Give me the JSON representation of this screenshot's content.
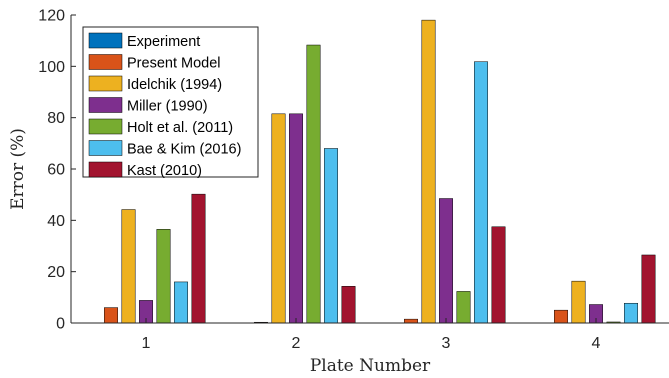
{
  "chart_data": {
    "type": "bar",
    "categories": [
      "1",
      "2",
      "3",
      "4"
    ],
    "xlabel": "Plate Number",
    "ylabel": "Error (%)",
    "ylim": [
      0,
      120
    ],
    "yticks": [
      0,
      20,
      40,
      60,
      80,
      100,
      120
    ],
    "grid": false,
    "legend_position": "top-left",
    "series": [
      {
        "name": "Experiment",
        "color": "#0072BD",
        "values": [
          0,
          0,
          0,
          0
        ]
      },
      {
        "name": "Present Model",
        "color": "#D95319",
        "values": [
          6,
          0.3,
          1.5,
          5
        ]
      },
      {
        "name": "Idelchik (1994)",
        "color": "#EDB120",
        "values": [
          44.2,
          81.5,
          118,
          16.3
        ]
      },
      {
        "name": "Miller (1990)",
        "color": "#7E2F8E",
        "values": [
          8.8,
          81.5,
          48.5,
          7.2
        ]
      },
      {
        "name": "Holt et al. (2011)",
        "color": "#77AC30",
        "values": [
          36.5,
          108.3,
          12.3,
          0.4
        ]
      },
      {
        "name": "Bae & Kim (2016)",
        "color": "#4DBEEE",
        "values": [
          16,
          68,
          101.8,
          7.7
        ]
      },
      {
        "name": "Kast (2010)",
        "color": "#A2142F",
        "values": [
          50.2,
          14.3,
          37.5,
          26.5
        ]
      }
    ]
  }
}
